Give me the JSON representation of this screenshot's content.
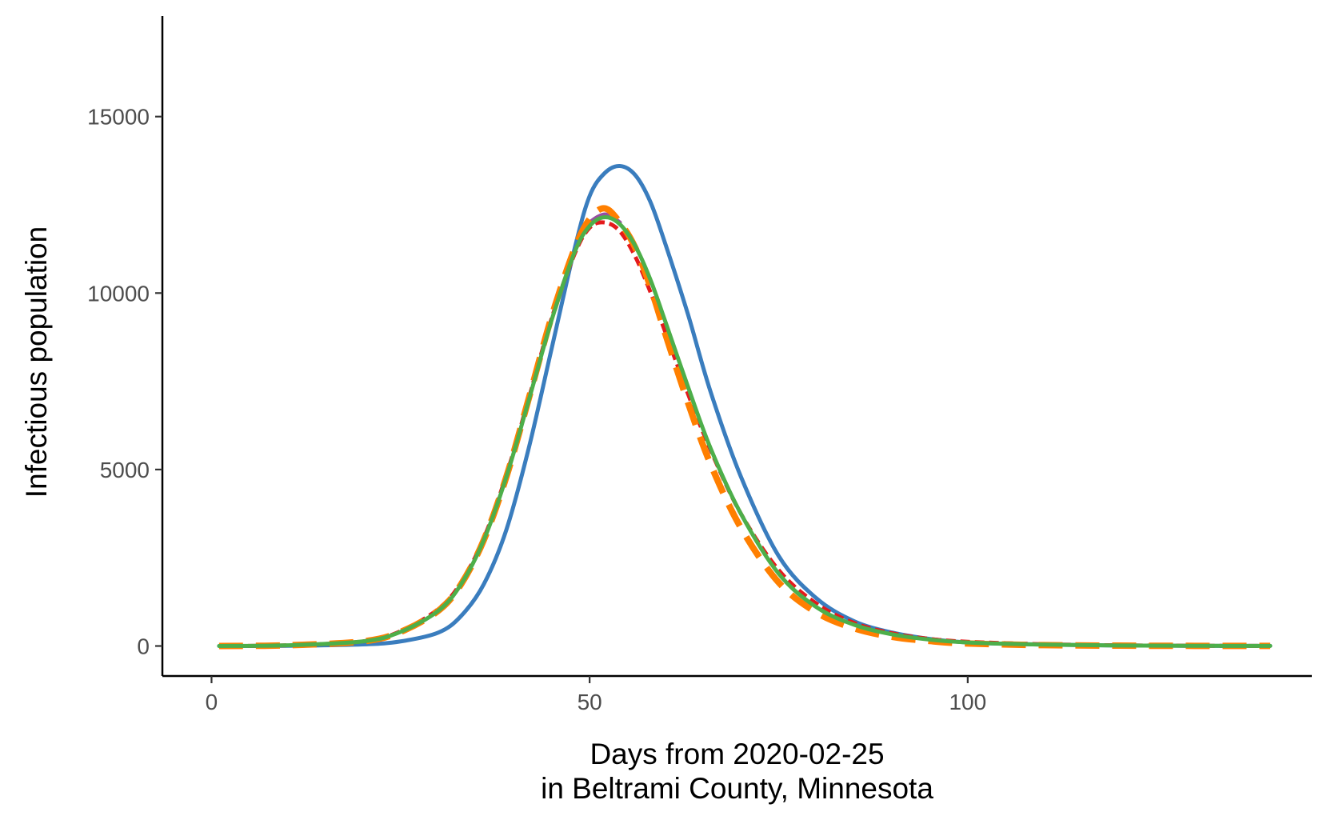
{
  "chart_data": {
    "type": "line",
    "title": "",
    "xlabel": "Days from 2020-02-25",
    "xlabel_line2": "in Beltrami County, Minnesota",
    "ylabel": "Infectious population",
    "xlim": [
      -6.5,
      145.5
    ],
    "ylim": [
      -850,
      17850
    ],
    "x_ticks": [
      0,
      50,
      100
    ],
    "x_tick_labels": [
      "0",
      "50",
      "100"
    ],
    "y_ticks": [
      0,
      5000,
      10000,
      15000
    ],
    "y_tick_labels": [
      "0",
      "5000",
      "10000",
      "15000"
    ],
    "grid": false,
    "legend": "none",
    "series": [
      {
        "color": "#3A7DBE",
        "dash": "solid",
        "x": [
          1,
          10,
          20,
          25,
          30,
          33,
          36,
          39,
          42,
          45,
          48,
          50,
          52,
          54,
          56,
          58,
          60,
          63,
          66,
          70,
          75,
          80,
          85,
          90,
          95,
          100,
          110,
          120,
          130,
          140
        ],
        "y": [
          0,
          5,
          45,
          130,
          380,
          850,
          1750,
          3300,
          5650,
          8450,
          11250,
          12750,
          13400,
          13600,
          13350,
          12600,
          11400,
          9400,
          7200,
          4800,
          2550,
          1350,
          700,
          380,
          200,
          100,
          40,
          15,
          5,
          2
        ]
      },
      {
        "color": "#E41A1C",
        "dash": "12,6",
        "x": [
          1,
          10,
          20,
          25,
          30,
          33,
          36,
          39,
          42,
          45,
          48,
          50,
          52,
          54,
          56,
          58,
          60,
          63,
          66,
          70,
          75,
          80,
          85,
          90,
          95,
          100,
          110,
          120,
          130,
          140
        ],
        "y": [
          0,
          20,
          130,
          420,
          1050,
          1800,
          3050,
          4850,
          7050,
          9300,
          11100,
          11850,
          12000,
          11750,
          11050,
          10050,
          8900,
          7150,
          5550,
          3750,
          2150,
          1200,
          650,
          360,
          200,
          120,
          50,
          20,
          8,
          3
        ]
      },
      {
        "color": "#984EA3",
        "dash": "solid",
        "x": [
          50,
          51,
          52,
          53,
          54
        ],
        "y": [
          12000,
          12150,
          12230,
          12150,
          12000
        ]
      },
      {
        "color": "#FF7F00",
        "dash": "30,16",
        "width": 8,
        "x": [
          1,
          10,
          20,
          25,
          30,
          33,
          36,
          39,
          42,
          45,
          48,
          50,
          52,
          54,
          56,
          58,
          60,
          63,
          66,
          70,
          75,
          80,
          85,
          90,
          95,
          100,
          110,
          120,
          130,
          140
        ],
        "y": [
          0,
          20,
          130,
          400,
          1000,
          1750,
          3000,
          4800,
          7050,
          9350,
          11250,
          12100,
          12400,
          12000,
          11300,
          10200,
          8850,
          6900,
          5150,
          3350,
          1800,
          950,
          500,
          260,
          140,
          70,
          25,
          10,
          4,
          2
        ]
      },
      {
        "color": "#4DAF4A",
        "dash": "solid",
        "x": [
          1,
          10,
          20,
          25,
          30,
          33,
          36,
          39,
          42,
          45,
          48,
          50,
          52,
          54,
          56,
          58,
          60,
          63,
          66,
          70,
          75,
          80,
          85,
          90,
          95,
          100,
          110,
          120,
          130,
          140
        ],
        "y": [
          0,
          20,
          130,
          400,
          1000,
          1750,
          3000,
          4800,
          7000,
          9250,
          11150,
          11900,
          12150,
          11950,
          11350,
          10400,
          9200,
          7350,
          5600,
          3750,
          2050,
          1100,
          600,
          330,
          180,
          100,
          40,
          15,
          6,
          2
        ]
      }
    ]
  }
}
